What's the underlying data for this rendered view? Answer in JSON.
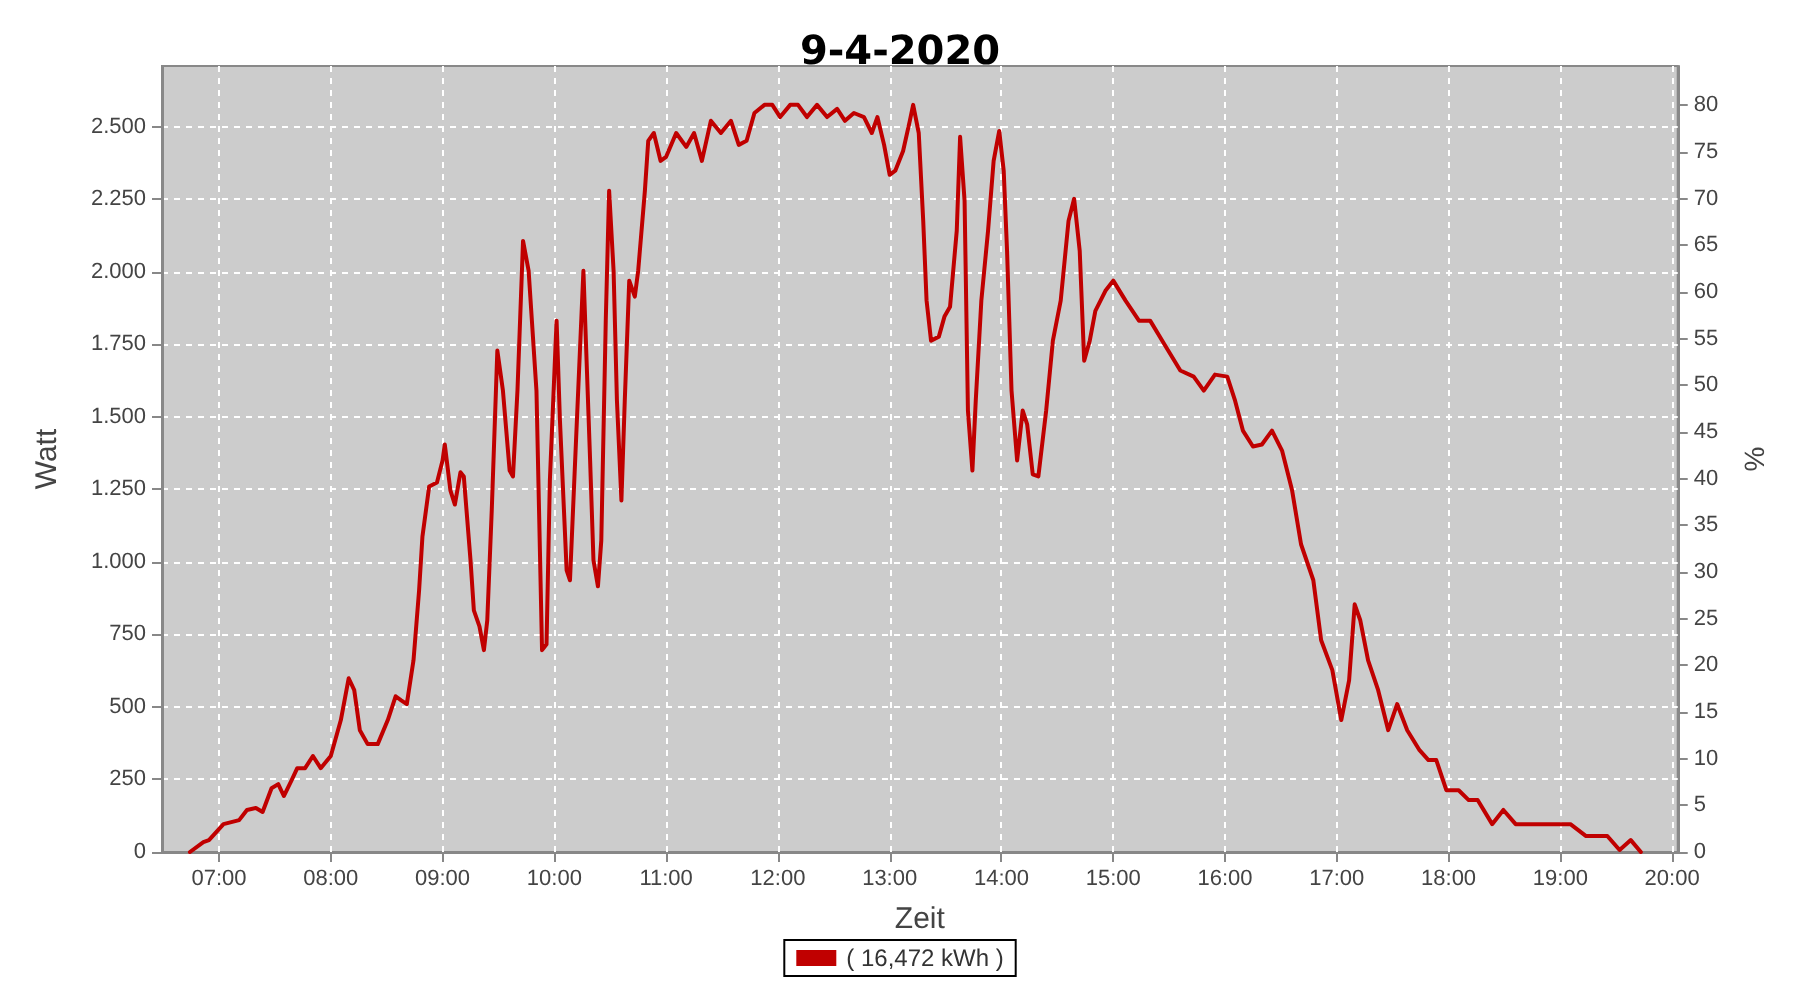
{
  "chart_data": {
    "type": "line",
    "title": "9-4-2020",
    "xlabel": "Zeit",
    "ylabel": "Watt",
    "y2label": "%",
    "x": [
      6.74,
      6.86,
      6.91,
      7.04,
      7.18,
      7.25,
      7.33,
      7.39,
      7.47,
      7.53,
      7.58,
      7.65,
      7.7,
      7.77,
      7.84,
      7.91,
      8.0,
      8.09,
      8.16,
      8.21,
      8.26,
      8.33,
      8.42,
      8.51,
      8.58,
      8.63,
      8.68,
      8.74,
      8.79,
      8.82,
      8.88,
      8.95,
      9.0,
      9.02,
      9.07,
      9.11,
      9.16,
      9.19,
      9.25,
      9.28,
      9.33,
      9.37,
      9.4,
      9.44,
      9.49,
      9.54,
      9.6,
      9.63,
      9.67,
      9.72,
      9.77,
      9.84,
      9.89,
      9.93,
      9.96,
      10.02,
      10.05,
      10.11,
      10.14,
      10.19,
      10.26,
      10.32,
      10.35,
      10.39,
      10.42,
      10.46,
      10.49,
      10.53,
      10.56,
      10.6,
      10.63,
      10.67,
      10.72,
      10.75,
      10.81,
      10.84,
      10.89,
      10.95,
      11.0,
      11.09,
      11.18,
      11.25,
      11.32,
      11.4,
      11.49,
      11.58,
      11.65,
      11.72,
      11.79,
      11.88,
      11.95,
      12.02,
      12.11,
      12.18,
      12.26,
      12.35,
      12.44,
      12.53,
      12.6,
      12.68,
      12.77,
      12.84,
      12.89,
      12.95,
      13.0,
      13.05,
      13.12,
      13.18,
      13.21,
      13.26,
      13.3,
      13.33,
      13.37,
      13.44,
      13.49,
      13.54,
      13.6,
      13.63,
      13.67,
      13.7,
      13.74,
      13.77,
      13.82,
      13.88,
      13.93,
      13.98,
      14.02,
      14.05,
      14.09,
      14.14,
      14.19,
      14.23,
      14.28,
      14.33,
      14.4,
      14.46,
      14.53,
      14.6,
      14.65,
      14.7,
      14.74,
      14.79,
      14.84,
      14.93,
      15.0,
      15.11,
      15.23,
      15.33,
      15.46,
      15.6,
      15.72,
      15.81,
      15.91,
      16.02,
      16.09,
      16.16,
      16.25,
      16.33,
      16.42,
      16.51,
      16.6,
      16.68,
      16.79,
      16.86,
      16.96,
      17.04,
      17.11,
      17.16,
      17.21,
      17.28,
      17.37,
      17.46,
      17.54,
      17.63,
      17.74,
      17.82,
      17.89,
      17.98,
      18.09,
      18.18,
      18.26,
      18.39,
      18.49,
      18.6,
      18.72,
      19.09,
      19.23,
      19.42,
      19.53,
      19.63,
      19.72
    ],
    "series": [
      {
        "name": "( 16,472 kWh )",
        "color": "#c00000",
        "values": [
          0,
          34,
          41,
          96,
          110,
          145,
          152,
          138,
          220,
          234,
          193,
          248,
          289,
          289,
          331,
          289,
          331,
          455,
          599,
          558,
          420,
          372,
          372,
          455,
          537,
          523,
          510,
          661,
          902,
          1088,
          1260,
          1274,
          1350,
          1405,
          1247,
          1198,
          1309,
          1295,
          1006,
          833,
          778,
          696,
          799,
          1178,
          1729,
          1591,
          1315,
          1295,
          1591,
          2107,
          2004,
          1591,
          696,
          716,
          1281,
          1832,
          1488,
          971,
          937,
          1384,
          2004,
          1350,
          1006,
          916,
          1074,
          1832,
          2280,
          2004,
          1556,
          1212,
          1556,
          1970,
          1915,
          2004,
          2280,
          2452,
          2479,
          2383,
          2397,
          2479,
          2431,
          2479,
          2383,
          2521,
          2479,
          2521,
          2438,
          2452,
          2548,
          2576,
          2576,
          2534,
          2576,
          2576,
          2534,
          2576,
          2534,
          2562,
          2521,
          2548,
          2534,
          2479,
          2534,
          2438,
          2335,
          2349,
          2417,
          2521,
          2576,
          2479,
          2176,
          1901,
          1763,
          1777,
          1846,
          1880,
          2142,
          2466,
          2245,
          1522,
          1315,
          1556,
          1901,
          2142,
          2383,
          2486,
          2349,
          2073,
          1591,
          1350,
          1522,
          1474,
          1302,
          1295,
          1522,
          1763,
          1901,
          2176,
          2252,
          2073,
          1694,
          1763,
          1866,
          1935,
          1970,
          1901,
          1832,
          1832,
          1749,
          1660,
          1639,
          1591,
          1646,
          1639,
          1556,
          1453,
          1398,
          1405,
          1453,
          1384,
          1247,
          1061,
          937,
          730,
          627,
          455,
          592,
          854,
          799,
          661,
          558,
          420,
          510,
          420,
          351,
          317,
          317,
          213,
          213,
          179,
          179,
          96,
          145,
          96,
          96,
          96,
          55,
          55,
          7,
          41,
          0
        ]
      }
    ],
    "xlim": [
      6.49,
      20.05
    ],
    "xticks": [
      {
        "value": 7,
        "label": "07:00"
      },
      {
        "value": 8,
        "label": "08:00"
      },
      {
        "value": 9,
        "label": "09:00"
      },
      {
        "value": 10,
        "label": "10:00"
      },
      {
        "value": 11,
        "label": "11:00"
      },
      {
        "value": 12,
        "label": "12:00"
      },
      {
        "value": 13,
        "label": "13:00"
      },
      {
        "value": 14,
        "label": "14:00"
      },
      {
        "value": 15,
        "label": "15:00"
      },
      {
        "value": 16,
        "label": "16:00"
      },
      {
        "value": 17,
        "label": "17:00"
      },
      {
        "value": 18,
        "label": "18:00"
      },
      {
        "value": 19,
        "label": "19:00"
      },
      {
        "value": 20,
        "label": "20:00"
      }
    ],
    "ylim": [
      0,
      2710
    ],
    "yticks": [
      0,
      {
        "value": 250,
        "label": "250"
      },
      {
        "value": 500,
        "label": "500"
      },
      {
        "value": 750,
        "label": "750"
      },
      {
        "value": 1000,
        "label": "1.000"
      },
      {
        "value": 1250,
        "label": "1.250"
      },
      {
        "value": 1500,
        "label": "1.500"
      },
      {
        "value": 1750,
        "label": "1.750"
      },
      {
        "value": 2000,
        "label": "2.000"
      },
      {
        "value": 2250,
        "label": "2.250"
      },
      {
        "value": 2500,
        "label": "2.500"
      }
    ],
    "y2lim": [
      0,
      84.2
    ],
    "y2ticks": [
      0,
      5,
      10,
      15,
      20,
      25,
      30,
      35,
      40,
      45,
      50,
      55,
      60,
      65,
      70,
      75,
      80
    ],
    "grid": true,
    "legend": "bottom",
    "marker": "none",
    "line_style": "solid"
  }
}
